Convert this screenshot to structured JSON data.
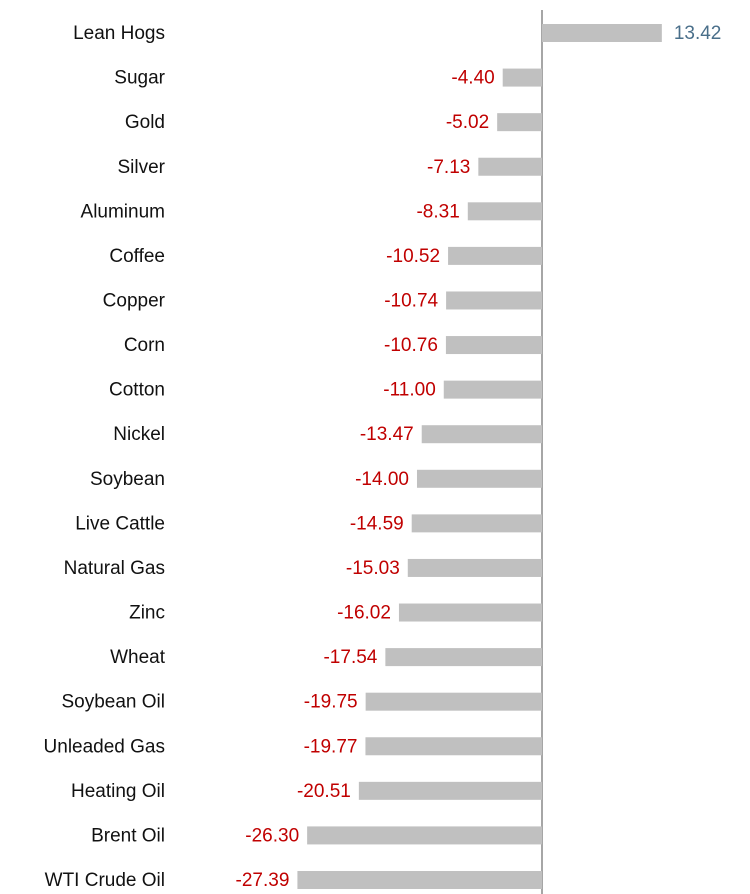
{
  "chart_data": {
    "type": "bar",
    "orientation": "horizontal",
    "categories": [
      "Lean Hogs",
      "Sugar",
      "Gold",
      "Silver",
      "Aluminum",
      "Coffee",
      "Copper",
      "Corn",
      "Cotton",
      "Nickel",
      "Soybean",
      "Live Cattle",
      "Natural Gas",
      "Zinc",
      "Wheat",
      "Soybean Oil",
      "Unleaded Gas",
      "Heating Oil",
      "Brent Oil",
      "WTI Crude Oil"
    ],
    "values": [
      13.42,
      -4.4,
      -5.02,
      -7.13,
      -8.31,
      -10.52,
      -10.74,
      -10.76,
      -11.0,
      -13.47,
      -14.0,
      -14.59,
      -15.03,
      -16.02,
      -17.54,
      -19.75,
      -19.77,
      -20.51,
      -26.3,
      -27.39
    ],
    "value_labels": [
      "13.42",
      "-4.40",
      "-5.02",
      "-7.13",
      "-8.31",
      "-10.52",
      "-10.74",
      "-10.76",
      "-11.00",
      "-13.47",
      "-14.00",
      "-14.59",
      "-15.03",
      "-16.02",
      "-17.54",
      "-19.75",
      "-19.77",
      "-20.51",
      "-26.30",
      "-27.39"
    ],
    "color": "#c0c0c0",
    "positive_label_color": "#4a6f8a",
    "negative_label_color": "#c00000"
  }
}
